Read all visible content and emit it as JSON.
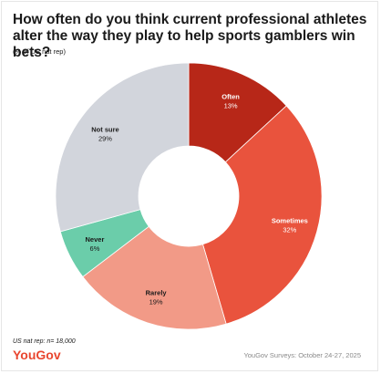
{
  "header": {
    "title": "How often do you think current professional athletes alter the way they play to help sports gamblers win bets?",
    "subtitle": "(% of US nat rep)"
  },
  "footer": {
    "sample_note": "US nat rep: n= 18,000",
    "brand": "YouGov",
    "source": "YouGov Surveys: October 24-27, 2025"
  },
  "chart_data": {
    "type": "pie",
    "donut": true,
    "categories": [
      "Often",
      "Sometimes",
      "Rarely",
      "Never",
      "Not sure"
    ],
    "values": [
      13,
      32,
      19,
      6,
      29
    ],
    "value_labels": [
      "13%",
      "32%",
      "19%",
      "6%",
      "29%"
    ],
    "colors": [
      "#b72718",
      "#e9533d",
      "#f29a87",
      "#6bcdaa",
      "#d2d5dc"
    ],
    "label_colors": [
      "#ffffff",
      "#ffffff",
      "#1a1a1a",
      "#1a1a1a",
      "#1a1a1a"
    ]
  }
}
